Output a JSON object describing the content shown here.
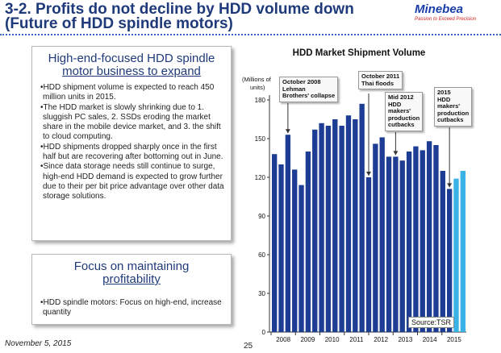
{
  "header": {
    "title_line1": "3-2. Profits do not decline by HDD volume down",
    "title_line2": "(Future of HDD spindle motors)",
    "logo_name": "Minebea",
    "logo_tagline": "Passion to Exceed Precision",
    "accent_color": "#1f3a7a"
  },
  "box1": {
    "heading_line1": "High-end-focused HDD spindle",
    "heading_line2": "motor business to expand",
    "bullets": [
      "•HDD shipment volume is expected to reach 450 million units in 2015.",
      "•The HDD market is slowly shrinking due to 1. sluggish PC sales, 2. SSDs eroding the market share in the mobile device market, and 3. the shift to cloud computing.",
      "•HDD shipments dropped sharply once in the first half but are recovering after bottoming out in June.",
      "•Since data storage needs still continue to surge, high-end HDD demand is expected to grow further due to their per bit price advantage over other data storage solutions."
    ]
  },
  "box2": {
    "heading_line1": "Focus on maintaining",
    "heading_line2": "profitability",
    "bullets": [
      "•HDD spindle motors: Focus on high-end, increase quantity"
    ]
  },
  "footer": {
    "date": "November 5, 2015",
    "page_number": "25"
  },
  "chart_data": {
    "type": "bar",
    "title": "HDD Market Shipment Volume",
    "ylabel_line1": "(Millions of",
    "ylabel_line2": "units)",
    "ylim": [
      0,
      180
    ],
    "yticks": [
      0,
      30,
      60,
      90,
      120,
      150,
      180
    ],
    "year_labels": [
      "2008",
      "2009",
      "2010",
      "2011",
      "2012",
      "2013",
      "2014",
      "2015"
    ],
    "values": [
      138,
      130,
      153,
      126,
      114,
      140,
      157,
      162,
      160,
      165,
      160,
      168,
      165,
      177,
      120,
      146,
      151,
      136,
      136,
      133,
      140,
      144,
      141,
      148,
      145,
      125,
      111,
      119,
      125
    ],
    "forecast_from_index": 27,
    "colors": {
      "actual": "#1d3d95",
      "forecast": "#39b2e6"
    },
    "annotations": [
      {
        "line1": "October 2008",
        "line2": "Lehman",
        "line3": "Brothers' collapse"
      },
      {
        "line1": "October 2011",
        "line2": "Thai floods"
      },
      {
        "line1": "Mid 2012",
        "line2": "HDD",
        "line3": "makers'",
        "line4": "production",
        "line5": "cutbacks"
      },
      {
        "line1": "2015",
        "line2": "HDD",
        "line3": "makers'",
        "line4": "production",
        "line5": "cutbacks"
      }
    ],
    "source": "Source:TSR"
  }
}
